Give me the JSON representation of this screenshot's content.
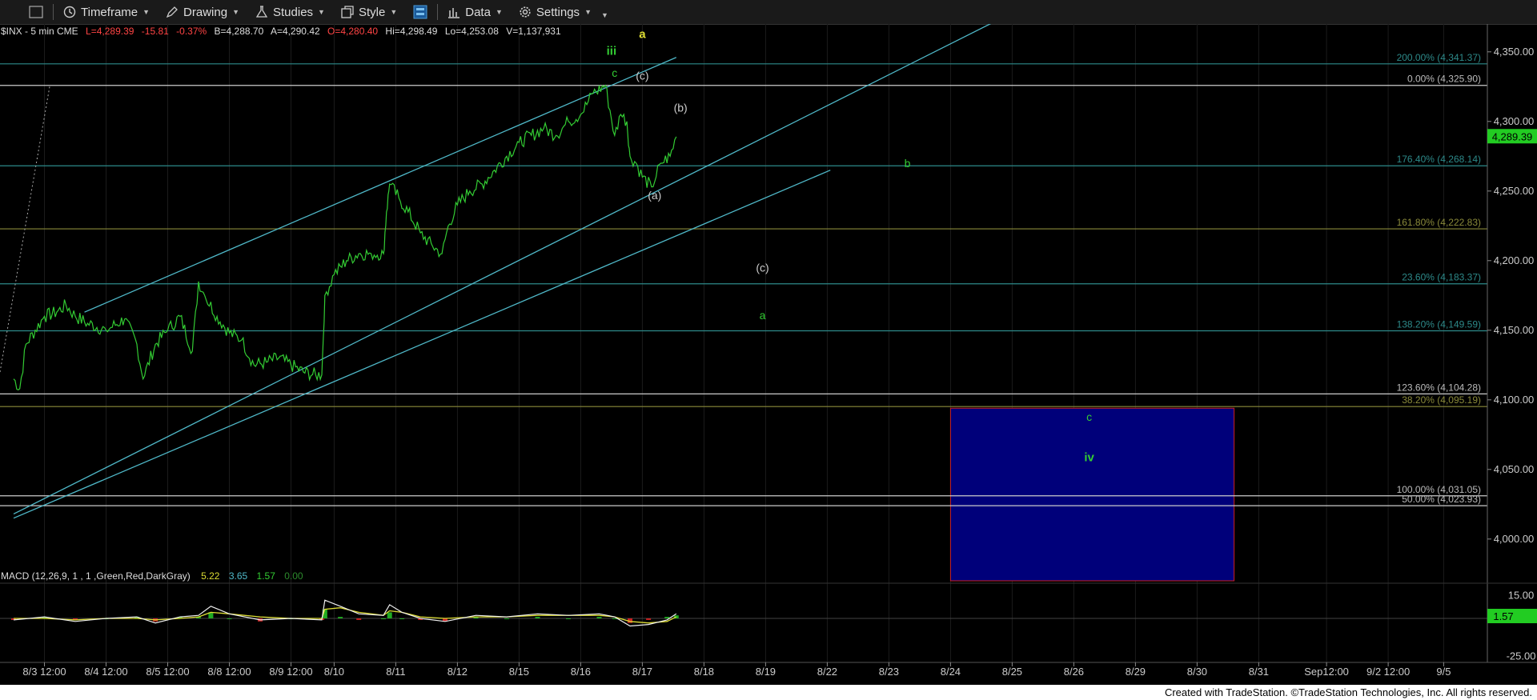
{
  "toolbar": {
    "timeframe_label": "Timeframe",
    "drawing_label": "Drawing",
    "studies_label": "Studies",
    "style_label": "Style",
    "data_label": "Data",
    "settings_label": "Settings"
  },
  "colors": {
    "background": "#000000",
    "price_line": "#33cc33",
    "channel": "#4fb8c8",
    "fib_green": "#2d8a8a",
    "fib_olive": "#8a8a3a",
    "fib_white": "#cccccc",
    "zone_fill": "#00007a",
    "zone_border": "#cc2222",
    "label_green": "#33cc33",
    "label_yellow": "#dddd33"
  },
  "symbol_info": {
    "symbol": "$INX - 5 min  CME",
    "last": "L=4,289.39",
    "change": "-15.81",
    "change_pct": "-0.37%",
    "bid": "B=4,288.70",
    "ask": "A=4,290.42",
    "open": "O=4,280.40",
    "high": "Hi=4,298.49",
    "low": "Lo=4,253.08",
    "volume": "V=1,137,931"
  },
  "macd_info": {
    "title": "MACD (12,26,9, 1 , 1 ,Green,Red,DarkGray)",
    "v1": "5.22",
    "v2": "3.65",
    "v3": "1.57",
    "v4": "0.00"
  },
  "footer": {
    "credit": "Created with TradeStation. ©TradeStation Technologies, Inc. All rights reserved."
  },
  "chart_data": {
    "type": "line",
    "title": "$INX - 5 min",
    "ylim": [
      3970,
      4370
    ],
    "y_ticks": [
      "4,350.00",
      "4,300.00",
      "4,250.00",
      "4,200.00",
      "4,150.00",
      "4,100.00",
      "4,050.00",
      "4,000.00"
    ],
    "y_tick_values": [
      4350,
      4300,
      4250,
      4200,
      4150,
      4100,
      4050,
      4000
    ],
    "x_labels": [
      "8/3 12:00",
      "8/4 12:00",
      "8/5 12:00",
      "8/8 12:00",
      "8/9 12:00",
      "8/10",
      "8/11",
      "8/12",
      "8/15",
      "8/16",
      "8/17",
      "8/18",
      "8/19",
      "8/22",
      "8/23",
      "8/24",
      "8/25",
      "8/26",
      "8/29",
      "8/30",
      "8/31",
      "Sep12:00",
      "9/2 12:00",
      "9/5"
    ],
    "x_label_index": [
      0.5,
      1.5,
      2.5,
      3.5,
      4.5,
      5.2,
      6.2,
      7.2,
      8.2,
      9.2,
      10.2,
      11.2,
      12.2,
      13.2,
      14.2,
      15.2,
      16.2,
      17.2,
      18.2,
      19.2,
      20.2,
      21.3,
      22.3,
      23.2
    ],
    "current_price": "4,289.39",
    "series": [
      {
        "name": "$INX",
        "x": [
          0,
          0.1,
          0.2,
          0.35,
          0.5,
          0.7,
          0.85,
          1.0,
          1.2,
          1.5,
          1.8,
          2.0,
          2.1,
          2.3,
          2.5,
          2.7,
          2.9,
          3.0,
          3.1,
          3.3,
          3.5,
          3.7,
          3.9,
          4.1,
          4.3,
          4.5,
          4.7,
          4.9,
          5.0,
          5.05,
          5.2,
          5.4,
          5.6,
          5.8,
          6.0,
          6.05,
          6.1,
          6.25,
          6.4,
          6.6,
          6.8,
          6.95,
          7.05,
          7.2,
          7.4,
          7.6,
          7.8,
          8.0,
          8.2,
          8.4,
          8.6,
          8.8,
          9.0,
          9.2,
          9.4,
          9.6,
          9.75,
          9.85,
          9.95,
          10.0,
          10.1,
          10.2,
          10.35,
          10.5,
          10.65,
          10.75
        ],
        "values": [
          4115,
          4108,
          4140,
          4150,
          4160,
          4163,
          4168,
          4160,
          4155,
          4150,
          4158,
          4140,
          4115,
          4140,
          4150,
          4160,
          4135,
          4185,
          4175,
          4160,
          4148,
          4143,
          4125,
          4127,
          4130,
          4125,
          4120,
          4118,
          4118,
          4175,
          4190,
          4200,
          4205,
          4205,
          4205,
          4235,
          4255,
          4245,
          4235,
          4220,
          4210,
          4205,
          4225,
          4240,
          4250,
          4255,
          4265,
          4275,
          4285,
          4290,
          4295,
          4290,
          4300,
          4305,
          4320,
          4326,
          4290,
          4305,
          4300,
          4275,
          4270,
          4260,
          4253,
          4270,
          4275,
          4289
        ]
      }
    ],
    "fib_levels": [
      {
        "label": "200.00% (4,341.37)",
        "value": 4341.37,
        "color": "#2d8a8a"
      },
      {
        "label": "0.00% (4,325.90)",
        "value": 4325.9,
        "color": "#cccccc"
      },
      {
        "label": "176.40% (4,268.14)",
        "value": 4268.14,
        "color": "#2d8a8a"
      },
      {
        "label": "161.80% (4,222.83)",
        "value": 4222.83,
        "color": "#8a8a3a"
      },
      {
        "label": "23.60% (4,183.37)",
        "value": 4183.37,
        "color": "#2d8a8a"
      },
      {
        "label": "138.20% (4,149.59)",
        "value": 4149.59,
        "color": "#2d8a8a"
      },
      {
        "label": "123.60% (4,104.28)",
        "value": 4104.28,
        "color": "#cccccc"
      },
      {
        "label": "38.20% (4,095.19)",
        "value": 4095.19,
        "color": "#8a8a3a"
      },
      {
        "label": "100.00% (4,031.05)",
        "value": 4031.05,
        "color": "#cccccc"
      },
      {
        "label": "50.00% (4,023.93)",
        "value": 4023.93,
        "color": "#cccccc"
      }
    ],
    "channel_lines": [
      {
        "x": [
          1.15,
          10.75
        ],
        "values": [
          4163,
          4346
        ]
      },
      {
        "x": [
          0,
          16.2
        ],
        "values": [
          4018,
          4378
        ]
      },
      {
        "x": [
          0,
          13.25
        ],
        "values": [
          4015,
          4265
        ]
      }
    ],
    "wave_labels": [
      {
        "text": "iii",
        "x": 9.7,
        "value": 4348,
        "color": "#33cc33",
        "bold": true
      },
      {
        "text": "a",
        "x": 10.2,
        "value": 4360,
        "color": "#dddd33",
        "bold": true
      },
      {
        "text": "c",
        "x": 9.75,
        "value": 4332,
        "color": "#33cc33",
        "bold": false
      },
      {
        "text": "(c)",
        "x": 10.2,
        "value": 4330,
        "color": "#cccccc",
        "bold": false
      },
      {
        "text": "(b)",
        "x": 10.82,
        "value": 4307,
        "color": "#cccccc",
        "bold": false
      },
      {
        "text": "(a)",
        "x": 10.4,
        "value": 4244,
        "color": "#cccccc",
        "bold": false
      },
      {
        "text": "b",
        "x": 14.5,
        "value": 4267,
        "color": "#33cc33",
        "bold": false
      },
      {
        "text": "(c)",
        "x": 12.15,
        "value": 4192,
        "color": "#cccccc",
        "bold": false
      },
      {
        "text": "a",
        "x": 12.15,
        "value": 4158,
        "color": "#33cc33",
        "bold": false
      },
      {
        "text": "c",
        "x": 17.45,
        "value": 4085,
        "color": "#33cc33",
        "bold": false
      },
      {
        "text": "iv",
        "x": 17.45,
        "value": 4056,
        "color": "#33cc33",
        "bold": true
      }
    ],
    "target_zone": {
      "x_start": 15.2,
      "x_end": 19.8,
      "top": 4094,
      "bottom": 3970
    },
    "macd": {
      "ylim": [
        -30,
        20
      ],
      "y_ticks": [
        "15.00",
        "-25.00"
      ],
      "y_tick_values": [
        15,
        -25
      ],
      "current": "1.57",
      "x": [
        0,
        0.5,
        1.0,
        1.5,
        2.0,
        2.3,
        2.7,
        3.0,
        3.2,
        3.5,
        4.0,
        4.5,
        5.0,
        5.05,
        5.3,
        5.6,
        6.0,
        6.1,
        6.3,
        6.6,
        7.0,
        7.5,
        8.0,
        8.5,
        9.0,
        9.5,
        9.75,
        10.0,
        10.3,
        10.6,
        10.75
      ],
      "macd_values": [
        -1,
        1,
        -2,
        0,
        1,
        -3,
        1,
        2,
        8,
        3,
        -1,
        0,
        -1,
        12,
        8,
        3,
        2,
        9,
        4,
        0,
        -2,
        2,
        1,
        3,
        2,
        3,
        1,
        -5,
        -4,
        -1,
        3
      ],
      "signal_values": [
        0,
        0,
        -1,
        0,
        0,
        -1,
        0,
        1,
        4,
        3,
        1,
        0,
        0,
        6,
        7,
        4,
        2,
        5,
        4,
        1,
        0,
        1,
        1,
        2,
        2,
        2,
        1,
        -2,
        -3,
        -2,
        1
      ]
    }
  }
}
